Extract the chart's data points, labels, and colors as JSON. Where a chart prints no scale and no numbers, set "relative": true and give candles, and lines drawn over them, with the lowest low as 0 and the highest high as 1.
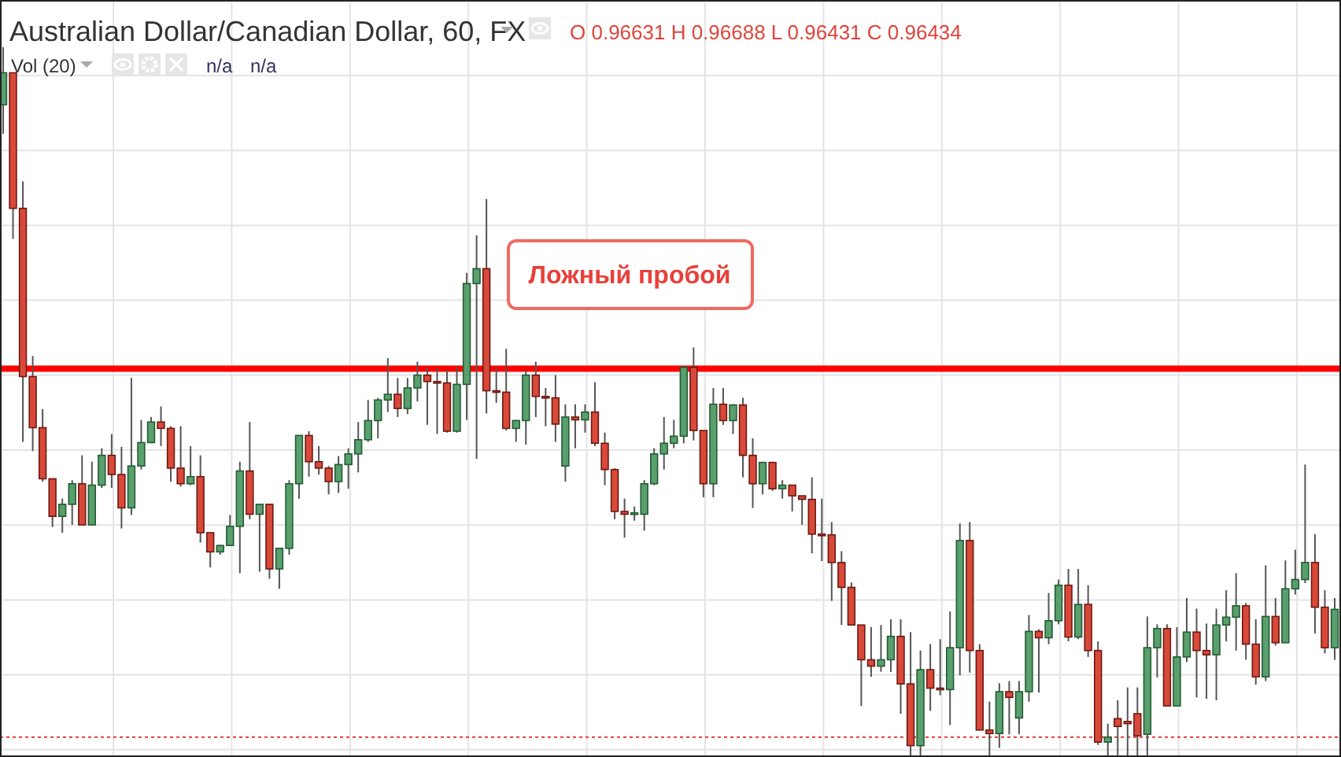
{
  "chart_data": {
    "type": "candlestick",
    "title": "Australian Dollar/Canadian Dollar, 60, FX",
    "relative": true,
    "grid": true,
    "annotations": [
      "O 0.96631 H 0.96688 L 0.96431 C 0.96434",
      "Vol (20)",
      "n/a",
      "n/a",
      "Ложный пробой"
    ],
    "ref_lines": [
      {
        "axis": "y",
        "value": 0.547,
        "color": "#ff0000",
        "line_style": "solid"
      },
      {
        "axis": "y",
        "value": 0.028,
        "color": "#e53935",
        "line_style": "dotted"
      }
    ],
    "categories": [
      null,
      null,
      null,
      null,
      null,
      null,
      null,
      null,
      null,
      null,
      null,
      null,
      null,
      null,
      null,
      null,
      null,
      null,
      null,
      null,
      null,
      null,
      null,
      null,
      null,
      null,
      null,
      null,
      null,
      null,
      null,
      null,
      null,
      null,
      null,
      null,
      null,
      null,
      null,
      null,
      null,
      null,
      null,
      null,
      null,
      null,
      null,
      null,
      null,
      null,
      null,
      null,
      null,
      null,
      null,
      null,
      null,
      null,
      null,
      null,
      null,
      null,
      null,
      null,
      null,
      null,
      null,
      null,
      null,
      null,
      null,
      null,
      null,
      null,
      null,
      null,
      null,
      null,
      null,
      null,
      null,
      null,
      null,
      null,
      null,
      null,
      null,
      null,
      null,
      null,
      null,
      null,
      null,
      null,
      null,
      null,
      null,
      null,
      null,
      null,
      null,
      null,
      null,
      null,
      null,
      null,
      null,
      null,
      null,
      null,
      null,
      null,
      null,
      null,
      null,
      null,
      null,
      null,
      null,
      null,
      null,
      null,
      null,
      null,
      null,
      null,
      null,
      null,
      null,
      null,
      null,
      null,
      null,
      null,
      null,
      null
    ],
    "ohlc": [
      [
        0.919,
        1,
        0.878,
        0.964
      ],
      [
        0.964,
        0.964,
        0.73,
        0.773
      ],
      [
        0.773,
        0.811,
        0.444,
        0.536
      ],
      [
        0.536,
        0.565,
        0.431,
        0.464
      ],
      [
        0.464,
        0.49,
        0.388,
        0.392
      ],
      [
        0.392,
        0.392,
        0.324,
        0.339
      ],
      [
        0.339,
        0.364,
        0.316,
        0.356
      ],
      [
        0.356,
        0.39,
        0.327,
        0.385
      ],
      [
        0.385,
        0.425,
        0.327,
        0.327
      ],
      [
        0.327,
        0.416,
        0.327,
        0.383
      ],
      [
        0.383,
        0.435,
        0.379,
        0.425
      ],
      [
        0.425,
        0.455,
        0.379,
        0.398
      ],
      [
        0.398,
        0.437,
        0.322,
        0.351
      ],
      [
        0.351,
        0.534,
        0.341,
        0.41
      ],
      [
        0.41,
        0.475,
        0.405,
        0.443
      ],
      [
        0.443,
        0.479,
        0.442,
        0.472
      ],
      [
        0.472,
        0.494,
        0.438,
        0.463
      ],
      [
        0.463,
        0.466,
        0.388,
        0.407
      ],
      [
        0.407,
        0.466,
        0.381,
        0.385
      ],
      [
        0.385,
        0.438,
        0.383,
        0.395
      ],
      [
        0.395,
        0.425,
        0.302,
        0.316
      ],
      [
        0.316,
        0.316,
        0.267,
        0.289
      ],
      [
        0.289,
        0.299,
        0.285,
        0.298
      ],
      [
        0.298,
        0.341,
        0.298,
        0.325
      ],
      [
        0.325,
        0.416,
        0.259,
        0.403
      ],
      [
        0.403,
        0.472,
        0.335,
        0.342
      ],
      [
        0.342,
        0.356,
        0.261,
        0.356
      ],
      [
        0.356,
        0.356,
        0.251,
        0.265
      ],
      [
        0.265,
        0.294,
        0.237,
        0.294
      ],
      [
        0.294,
        0.39,
        0.285,
        0.385
      ],
      [
        0.385,
        0.453,
        0.364,
        0.453
      ],
      [
        0.453,
        0.459,
        0.395,
        0.416
      ],
      [
        0.416,
        0.438,
        0.398,
        0.407
      ],
      [
        0.407,
        0.41,
        0.37,
        0.388
      ],
      [
        0.388,
        0.424,
        0.372,
        0.412
      ],
      [
        0.412,
        0.435,
        0.378,
        0.427
      ],
      [
        0.427,
        0.472,
        0.401,
        0.447
      ],
      [
        0.447,
        0.503,
        0.444,
        0.474
      ],
      [
        0.474,
        0.506,
        0.449,
        0.503
      ],
      [
        0.503,
        0.562,
        0.486,
        0.511
      ],
      [
        0.511,
        0.534,
        0.479,
        0.491
      ],
      [
        0.491,
        0.534,
        0.483,
        0.52
      ],
      [
        0.52,
        0.557,
        0.501,
        0.538
      ],
      [
        0.538,
        0.549,
        0.468,
        0.529
      ],
      [
        0.529,
        0.548,
        0.455,
        0.527
      ],
      [
        0.527,
        0.545,
        0.457,
        0.459
      ],
      [
        0.459,
        0.549,
        0.457,
        0.525
      ],
      [
        0.525,
        0.682,
        0.475,
        0.667
      ],
      [
        0.667,
        0.735,
        0.42,
        0.688
      ],
      [
        0.688,
        0.786,
        0.484,
        0.516
      ],
      [
        0.516,
        0.549,
        0.499,
        0.514
      ],
      [
        0.514,
        0.575,
        0.46,
        0.463
      ],
      [
        0.463,
        0.475,
        0.444,
        0.474
      ],
      [
        0.474,
        0.545,
        0.44,
        0.538
      ],
      [
        0.538,
        0.557,
        0.479,
        0.508
      ],
      [
        0.508,
        0.52,
        0.466,
        0.506
      ],
      [
        0.506,
        0.538,
        0.444,
        0.469
      ],
      [
        0.41,
        0.497,
        0.388,
        0.479
      ],
      [
        0.479,
        0.497,
        0.435,
        0.475
      ],
      [
        0.475,
        0.497,
        0.457,
        0.486
      ],
      [
        0.486,
        0.528,
        0.438,
        0.442
      ],
      [
        0.442,
        0.457,
        0.383,
        0.405
      ],
      [
        0.405,
        0.407,
        0.335,
        0.346
      ],
      [
        0.346,
        0.364,
        0.309,
        0.342
      ],
      [
        0.342,
        0.353,
        0.333,
        0.344
      ],
      [
        0.342,
        0.39,
        0.319,
        0.385
      ],
      [
        0.385,
        0.435,
        0.383,
        0.427
      ],
      [
        0.427,
        0.479,
        0.405,
        0.442
      ],
      [
        0.442,
        0.475,
        0.435,
        0.452
      ],
      [
        0.452,
        0.549,
        0.442,
        0.549
      ],
      [
        0.549,
        0.577,
        0.446,
        0.46
      ],
      [
        0.46,
        0.46,
        0.366,
        0.385
      ],
      [
        0.385,
        0.52,
        0.366,
        0.497
      ],
      [
        0.497,
        0.52,
        0.468,
        0.474
      ],
      [
        0.474,
        0.497,
        0.455,
        0.496
      ],
      [
        0.496,
        0.506,
        0.394,
        0.425
      ],
      [
        0.425,
        0.449,
        0.351,
        0.385
      ],
      [
        0.385,
        0.416,
        0.37,
        0.415
      ],
      [
        0.415,
        0.416,
        0.375,
        0.378
      ],
      [
        0.378,
        0.39,
        0.364,
        0.383
      ],
      [
        0.383,
        0.383,
        0.346,
        0.368
      ],
      [
        0.368,
        0.368,
        0.327,
        0.363
      ],
      [
        0.363,
        0.394,
        0.287,
        0.314
      ],
      [
        0.314,
        0.364,
        0.276,
        0.313
      ],
      [
        0.313,
        0.331,
        0.22,
        0.274
      ],
      [
        0.274,
        0.29,
        0.186,
        0.239
      ],
      [
        0.239,
        0.246,
        0.186,
        0.186
      ],
      [
        0.186,
        0.186,
        0.072,
        0.137
      ],
      [
        0.137,
        0.183,
        0.113,
        0.128
      ],
      [
        0.128,
        0.186,
        0.12,
        0.137
      ],
      [
        0.137,
        0.194,
        0.12,
        0.17
      ],
      [
        0.17,
        0.194,
        0.061,
        0.103
      ],
      [
        0.103,
        0.176,
        0,
        0.016
      ],
      [
        0.016,
        0.15,
        0,
        0.123
      ],
      [
        0.123,
        0.159,
        0.065,
        0.097
      ],
      [
        0.097,
        0.166,
        0.087,
        0.095
      ],
      [
        0.095,
        0.205,
        0.045,
        0.154
      ],
      [
        0.154,
        0.329,
        0.115,
        0.305
      ],
      [
        0.305,
        0.331,
        0.119,
        0.15
      ],
      [
        0.15,
        0.159,
        0.038,
        0.038
      ],
      [
        0.038,
        0.078,
        0,
        0.033
      ],
      [
        0.033,
        0.104,
        0.013,
        0.092
      ],
      [
        0.092,
        0.107,
        0.032,
        0.084
      ],
      [
        0.055,
        0.107,
        0.032,
        0.092
      ],
      [
        0.092,
        0.2,
        0.078,
        0.177
      ],
      [
        0.177,
        0.18,
        0.091,
        0.168
      ],
      [
        0.168,
        0.231,
        0.159,
        0.192
      ],
      [
        0.192,
        0.25,
        0.187,
        0.242
      ],
      [
        0.242,
        0.265,
        0.163,
        0.169
      ],
      [
        0.169,
        0.265,
        0.166,
        0.215
      ],
      [
        0.215,
        0.242,
        0.141,
        0.15
      ],
      [
        0.15,
        0.163,
        0.017,
        0.021
      ],
      [
        0.021,
        0.047,
        0,
        0.028
      ],
      [
        0.054,
        0.08,
        0,
        0.043
      ],
      [
        0.05,
        0.098,
        0,
        0.047
      ],
      [
        0.061,
        0.098,
        0,
        0.03
      ],
      [
        0.032,
        0.198,
        0,
        0.154
      ],
      [
        0.154,
        0.187,
        0.112,
        0.181
      ],
      [
        0.181,
        0.187,
        0.072,
        0.072
      ],
      [
        0.072,
        0.183,
        0.072,
        0.141
      ],
      [
        0.141,
        0.224,
        0.134,
        0.176
      ],
      [
        0.176,
        0.209,
        0.084,
        0.15
      ],
      [
        0.15,
        0.188,
        0.082,
        0.144
      ],
      [
        0.144,
        0.209,
        0.08,
        0.186
      ],
      [
        0.186,
        0.235,
        0.163,
        0.197
      ],
      [
        0.197,
        0.259,
        0.15,
        0.213
      ],
      [
        0.213,
        0.217,
        0.137,
        0.159
      ],
      [
        0.159,
        0.194,
        0.102,
        0.113
      ],
      [
        0.113,
        0.27,
        0.107,
        0.198
      ],
      [
        0.198,
        0.224,
        0.157,
        0.161
      ],
      [
        0.161,
        0.277,
        0.161,
        0.237
      ],
      [
        0.237,
        0.292,
        0.229,
        0.25
      ],
      [
        0.25,
        0.412,
        0.245,
        0.274
      ],
      [
        0.274,
        0.314,
        0.174,
        0.211
      ],
      [
        0.211,
        0.235,
        0.146,
        0.154
      ],
      [
        0.154,
        0.224,
        0.137,
        0.208
      ]
    ]
  }
}
